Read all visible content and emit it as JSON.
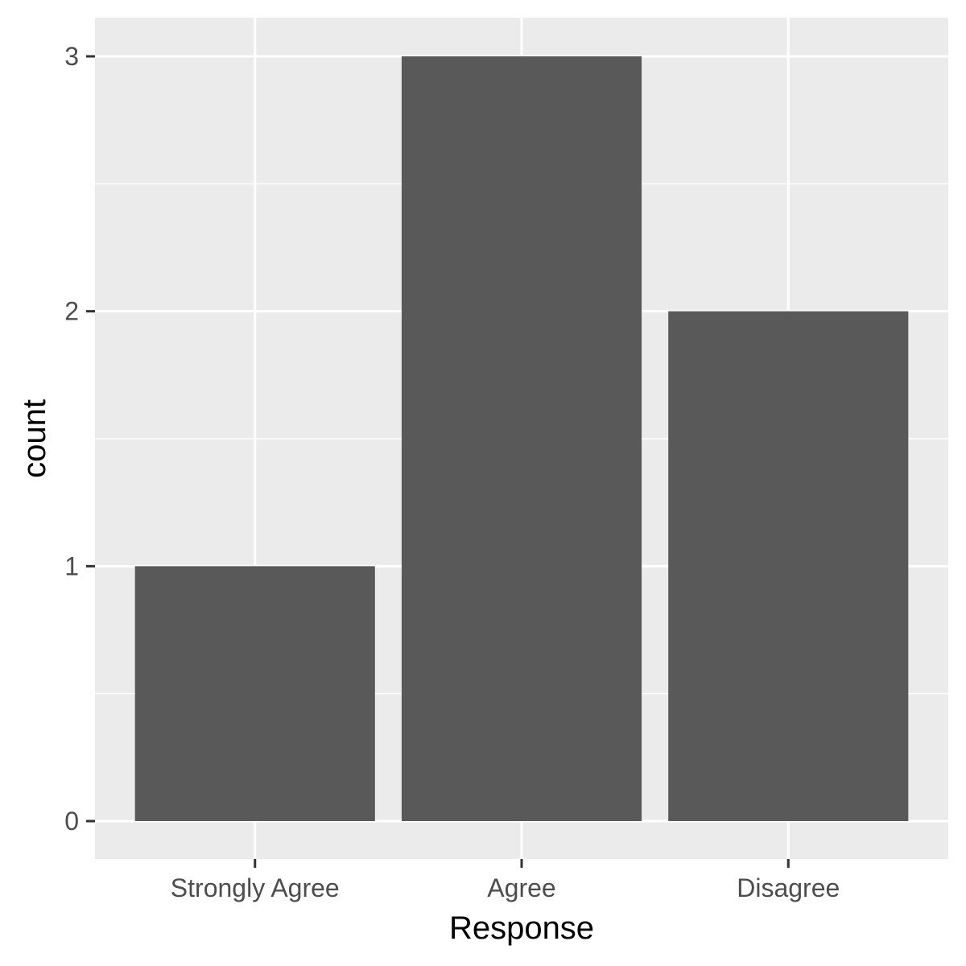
{
  "chart_data": {
    "type": "bar",
    "categories": [
      "Strongly Agree",
      "Agree",
      "Disagree"
    ],
    "values": [
      1,
      3,
      2
    ],
    "title": "",
    "xlabel": "Response",
    "ylabel": "count",
    "ylim": [
      0,
      3
    ],
    "y_ticks": [
      0,
      1,
      2,
      3
    ],
    "grid": true,
    "colors": {
      "bar": "#595959",
      "panel": "#EBEBEB",
      "gridline": "#FFFFFF"
    }
  }
}
